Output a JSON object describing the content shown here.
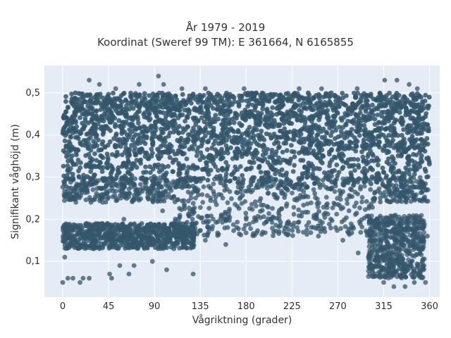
{
  "chart_data": {
    "type": "scatter",
    "title": "År 1979 - 2019",
    "subtitle": "Koordinat (Sweref 99 TM): E 361664, N 6165855",
    "xlabel": "Vågriktning (grader)",
    "ylabel": "Signifikant våghöjd (m)",
    "xlim": [
      -18,
      370
    ],
    "ylim": [
      0.015,
      0.565
    ],
    "xticks": [
      0,
      45,
      90,
      135,
      180,
      225,
      270,
      315,
      360
    ],
    "yticks": [
      0.1,
      0.2,
      0.3,
      0.4,
      0.5
    ],
    "ytick_labels": [
      "0,1",
      "0,2",
      "0,3",
      "0,4",
      "0,5"
    ],
    "grid": true,
    "marker_color": "#34566b",
    "background": "#e5ecf6",
    "points": [
      [
        0,
        0.05
      ],
      [
        5,
        0.06
      ],
      [
        10,
        0.06
      ],
      [
        17,
        0.05
      ],
      [
        20,
        0.06
      ],
      [
        26,
        0.06
      ],
      [
        46,
        0.07
      ],
      [
        48,
        0.06
      ],
      [
        56,
        0.09
      ],
      [
        65,
        0.07
      ],
      [
        70,
        0.09
      ],
      [
        88,
        0.1
      ],
      [
        102,
        0.08
      ],
      [
        128,
        0.07
      ],
      [
        2,
        0.11
      ],
      [
        5,
        0.17
      ],
      [
        15,
        0.18
      ],
      [
        30,
        0.13
      ],
      [
        44,
        0.19
      ],
      [
        60,
        0.2
      ],
      [
        98,
        0.22
      ],
      [
        115,
        0.18
      ],
      [
        140,
        0.15
      ],
      [
        160,
        0.14
      ],
      [
        180,
        0.2
      ],
      [
        207,
        0.17
      ],
      [
        230,
        0.18
      ],
      [
        251,
        0.16
      ],
      [
        275,
        0.15
      ],
      [
        290,
        0.12
      ],
      [
        300,
        0.11
      ],
      [
        306,
        0.15
      ],
      [
        320,
        0.12
      ],
      [
        332,
        0.14
      ],
      [
        340,
        0.19
      ],
      [
        354,
        0.08
      ],
      [
        358,
        0.16
      ],
      [
        26,
        0.53
      ],
      [
        36,
        0.52
      ],
      [
        52,
        0.51
      ],
      [
        75,
        0.52
      ],
      [
        94,
        0.54
      ],
      [
        99,
        0.52
      ],
      [
        117,
        0.51
      ],
      [
        140,
        0.51
      ],
      [
        178,
        0.51
      ],
      [
        232,
        0.51
      ],
      [
        254,
        0.51
      ],
      [
        289,
        0.51
      ],
      [
        316,
        0.53
      ],
      [
        328,
        0.53
      ],
      [
        340,
        0.52
      ],
      [
        348,
        0.51
      ],
      [
        315,
        0.05
      ],
      [
        325,
        0.04
      ],
      [
        336,
        0.04
      ],
      [
        345,
        0.05
      ],
      [
        356,
        0.05
      ]
    ]
  }
}
